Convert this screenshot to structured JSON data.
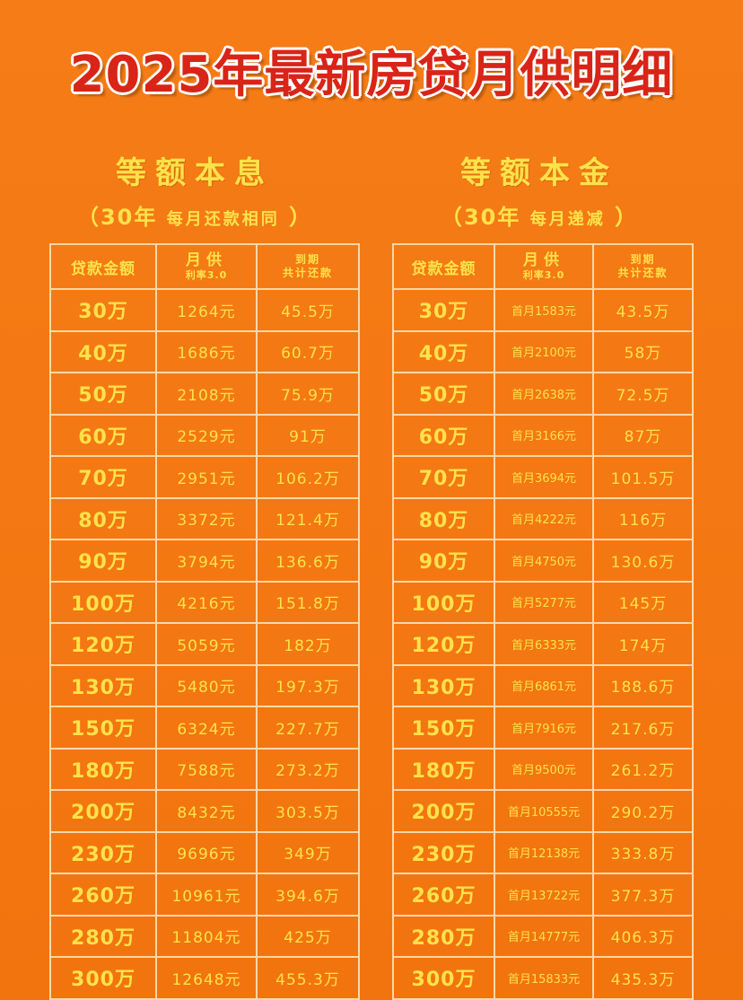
{
  "title": "2025年最新房贷月供明细",
  "equal_installment": {
    "name": "等额本息",
    "sub_open": "（",
    "sub_term": "30年",
    "sub_note": "每月还款相同",
    "sub_close": "）",
    "headers": {
      "amount": "贷款金额",
      "monthly": "月供",
      "rate": "利率3.0",
      "total_top": "到期",
      "total_bottom": "共计还款"
    },
    "rows": [
      {
        "amount": "30万",
        "monthly": "1264元",
        "total": "45.5万"
      },
      {
        "amount": "40万",
        "monthly": "1686元",
        "total": "60.7万"
      },
      {
        "amount": "50万",
        "monthly": "2108元",
        "total": "75.9万"
      },
      {
        "amount": "60万",
        "monthly": "2529元",
        "total": "91万"
      },
      {
        "amount": "70万",
        "monthly": "2951元",
        "total": "106.2万"
      },
      {
        "amount": "80万",
        "monthly": "3372元",
        "total": "121.4万"
      },
      {
        "amount": "90万",
        "monthly": "3794元",
        "total": "136.6万"
      },
      {
        "amount": "100万",
        "monthly": "4216元",
        "total": "151.8万"
      },
      {
        "amount": "120万",
        "monthly": "5059元",
        "total": "182万"
      },
      {
        "amount": "130万",
        "monthly": "5480元",
        "total": "197.3万"
      },
      {
        "amount": "150万",
        "monthly": "6324元",
        "total": "227.7万"
      },
      {
        "amount": "180万",
        "monthly": "7588元",
        "total": "273.2万"
      },
      {
        "amount": "200万",
        "monthly": "8432元",
        "total": "303.5万"
      },
      {
        "amount": "230万",
        "monthly": "9696元",
        "total": "349万"
      },
      {
        "amount": "260万",
        "monthly": "10961元",
        "total": "394.6万"
      },
      {
        "amount": "280万",
        "monthly": "11804元",
        "total": "425万"
      },
      {
        "amount": "300万",
        "monthly": "12648元",
        "total": "455.3万"
      }
    ]
  },
  "equal_principal": {
    "name": "等额本金",
    "sub_open": "（",
    "sub_term": "30年",
    "sub_note": "每月递减",
    "sub_close": "）",
    "headers": {
      "amount": "贷款金额",
      "monthly": "月供",
      "rate": "利率3.0",
      "total_top": "到期",
      "total_bottom": "共计还款"
    },
    "rows": [
      {
        "amount": "30万",
        "monthly": "首月1583元",
        "total": "43.5万"
      },
      {
        "amount": "40万",
        "monthly": "首月2100元",
        "total": "58万"
      },
      {
        "amount": "50万",
        "monthly": "首月2638元",
        "total": "72.5万"
      },
      {
        "amount": "60万",
        "monthly": "首月3166元",
        "total": "87万"
      },
      {
        "amount": "70万",
        "monthly": "首月3694元",
        "total": "101.5万"
      },
      {
        "amount": "80万",
        "monthly": "首月4222元",
        "total": "116万"
      },
      {
        "amount": "90万",
        "monthly": "首月4750元",
        "total": "130.6万"
      },
      {
        "amount": "100万",
        "monthly": "首月5277元",
        "total": "145万"
      },
      {
        "amount": "120万",
        "monthly": "首月6333元",
        "total": "174万"
      },
      {
        "amount": "130万",
        "monthly": "首月6861元",
        "total": "188.6万"
      },
      {
        "amount": "150万",
        "monthly": "首月7916元",
        "total": "217.6万"
      },
      {
        "amount": "180万",
        "monthly": "首月9500元",
        "total": "261.2万"
      },
      {
        "amount": "200万",
        "monthly": "首月10555元",
        "total": "290.2万"
      },
      {
        "amount": "230万",
        "monthly": "首月12138元",
        "total": "333.8万"
      },
      {
        "amount": "260万",
        "monthly": "首月13722元",
        "total": "377.3万"
      },
      {
        "amount": "280万",
        "monthly": "首月14777元",
        "total": "406.3万"
      },
      {
        "amount": "300万",
        "monthly": "首月15833元",
        "total": "435.3万"
      }
    ]
  }
}
